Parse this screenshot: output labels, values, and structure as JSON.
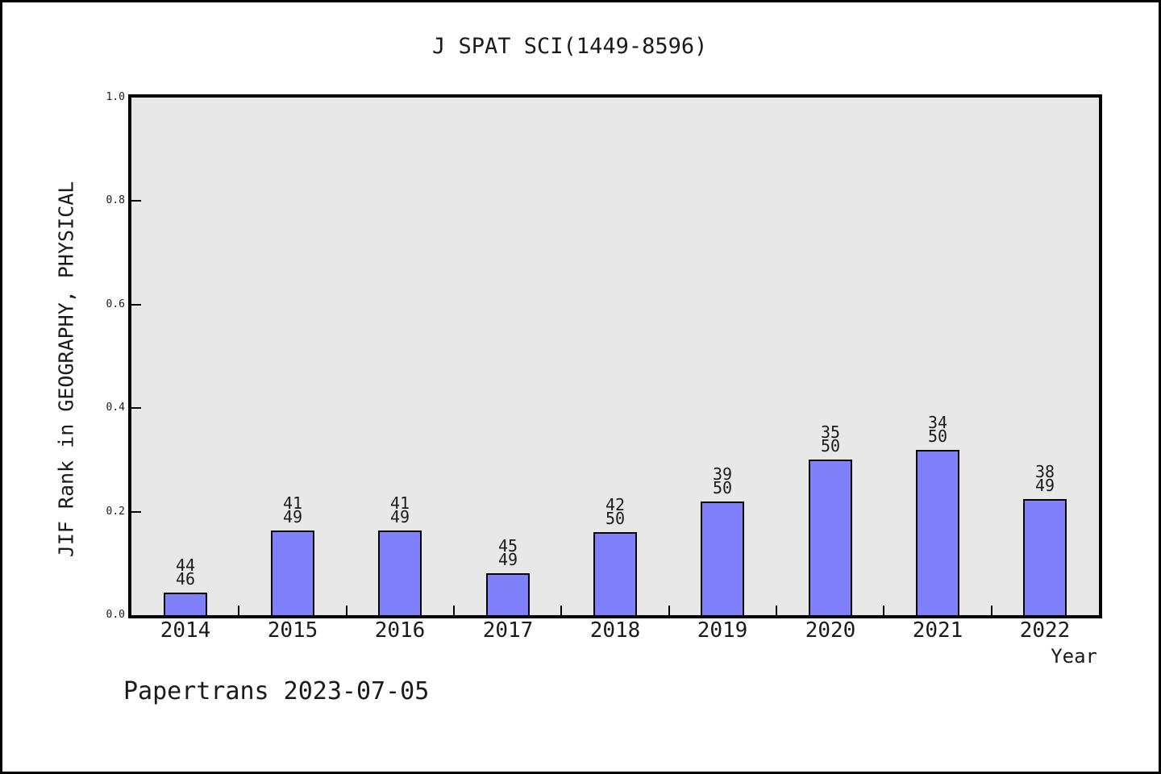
{
  "title": "J SPAT SCI(1449-8596)",
  "footer_note": "Papertrans 2023-07-05",
  "colors": {
    "bar_fill": "#8080FA",
    "bar_edge": "#000000",
    "plot_background": "#E8E8E8",
    "text": "#1a1a1a",
    "outer_border": "#000000"
  },
  "chart_data": {
    "type": "bar",
    "title": "J SPAT SCI(1449-8596)",
    "xlabel": "Year",
    "ylabel": "JIF Rank in GEOGRAPHY, PHYSICAL",
    "ylim": [
      0.0,
      1.0
    ],
    "yticks": [
      0.0,
      0.2,
      0.4,
      0.6,
      0.8,
      1.0
    ],
    "grid": false,
    "legend": null,
    "categories": [
      "2014",
      "2015",
      "2016",
      "2017",
      "2018",
      "2019",
      "2020",
      "2021",
      "2022"
    ],
    "values": [
      0.0435,
      0.1633,
      0.1633,
      0.0816,
      0.16,
      0.22,
      0.3,
      0.32,
      0.2245
    ],
    "ranks": [
      "44",
      "41",
      "41",
      "45",
      "42",
      "39",
      "35",
      "34",
      "38"
    ],
    "totals": [
      "46",
      "49",
      "49",
      "49",
      "50",
      "50",
      "50",
      "50",
      "49"
    ],
    "bar_label_format": "rank over total, stacked above each bar"
  }
}
